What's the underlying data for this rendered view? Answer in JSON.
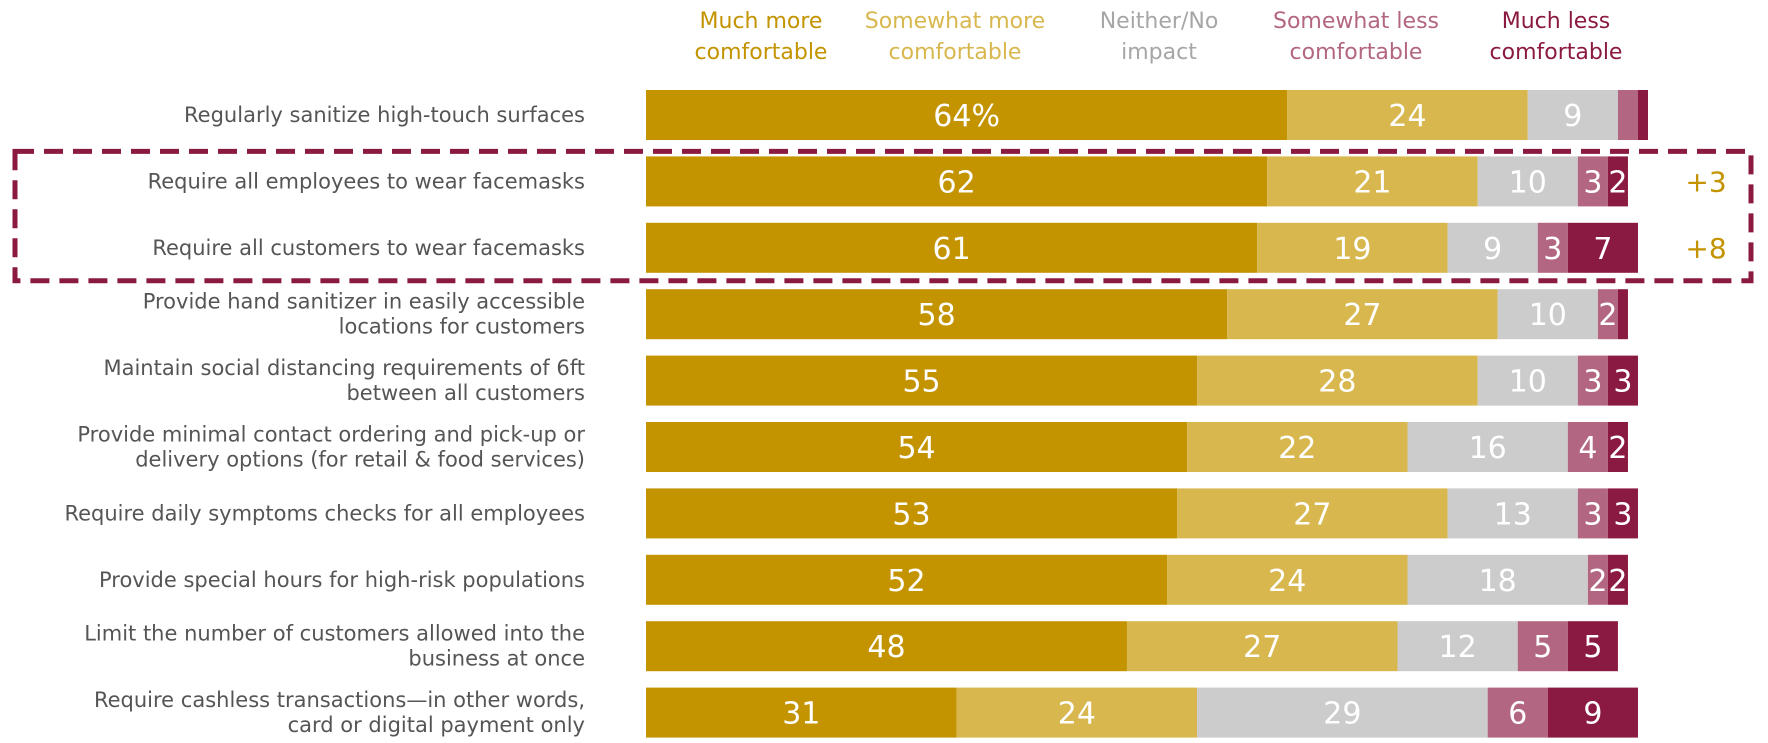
{
  "chart_data": {
    "type": "bar",
    "orientation": "horizontal",
    "stacked": true,
    "series": [
      {
        "name": "Much more comfortable",
        "color": "#C39300",
        "values": [
          64,
          62,
          61,
          58,
          55,
          54,
          53,
          52,
          48,
          31
        ]
      },
      {
        "name": "Somewhat more comfortable",
        "color": "#D8B74E",
        "values": [
          24,
          21,
          19,
          27,
          28,
          22,
          27,
          24,
          27,
          24
        ]
      },
      {
        "name": "Neither/No impact",
        "color": "#CCCCCC",
        "values": [
          9,
          10,
          9,
          10,
          10,
          16,
          13,
          18,
          12,
          29
        ]
      },
      {
        "name": "Somewhat less comfortable",
        "color": "#B36681",
        "values": [
          2,
          3,
          3,
          2,
          3,
          4,
          3,
          2,
          5,
          6
        ]
      },
      {
        "name": "Much less comfortable",
        "color": "#8B1A42",
        "values": [
          1,
          2,
          7,
          1,
          3,
          2,
          3,
          2,
          5,
          9
        ]
      }
    ],
    "legend_labels": [
      [
        "Much more",
        "comfortable"
      ],
      [
        "Somewhat more",
        "comfortable"
      ],
      [
        "Neither/No",
        "impact"
      ],
      [
        "Somewhat less",
        "comfortable"
      ],
      [
        "Much less",
        "comfortable"
      ]
    ],
    "legend_text_colors": [
      "#C39300",
      "#D8B74E",
      "#A6A6A6",
      "#B36681",
      "#8B1A42"
    ],
    "categories": [
      [
        "Regularly sanitize high-touch surfaces"
      ],
      [
        "Require all employees to wear facemasks"
      ],
      [
        "Require all customers to wear facemasks"
      ],
      [
        "Provide hand sanitizer in easily accessible",
        "locations for customers"
      ],
      [
        "Maintain social distancing requirements of 6ft",
        "between all customers"
      ],
      [
        "Provide minimal contact ordering and pick-up or",
        "delivery options (for retail & food services)"
      ],
      [
        "Require daily symptoms checks for all employees"
      ],
      [
        "Provide special hours for high-risk populations"
      ],
      [
        "Limit the number of customers allowed into the",
        "business at once"
      ],
      [
        "Require cashless transactions—in other words,",
        "card or digital payment only"
      ]
    ],
    "value_labels": [
      [
        "64%",
        "24",
        "9",
        "",
        ""
      ],
      [
        "62",
        "21",
        "10",
        "3",
        "2"
      ],
      [
        "61",
        "19",
        "9",
        "3",
        "7"
      ],
      [
        "58",
        "27",
        "10",
        "2",
        ""
      ],
      [
        "55",
        "28",
        "10",
        "3",
        "3"
      ],
      [
        "54",
        "22",
        "16",
        "4",
        "2"
      ],
      [
        "53",
        "27",
        "13",
        "3",
        "3"
      ],
      [
        "52",
        "24",
        "18",
        "2",
        "2"
      ],
      [
        "48",
        "27",
        "12",
        "5",
        "5"
      ],
      [
        "31",
        "24",
        "29",
        "6",
        "9"
      ]
    ],
    "callouts": [
      {
        "row": 1,
        "text": "+3"
      },
      {
        "row": 2,
        "text": "+8"
      }
    ],
    "callout_color": "#C39300",
    "highlight_box": {
      "rows": [
        1,
        2
      ],
      "color": "#8B1A42",
      "style": "dashed"
    },
    "xlim": [
      0,
      100
    ]
  }
}
